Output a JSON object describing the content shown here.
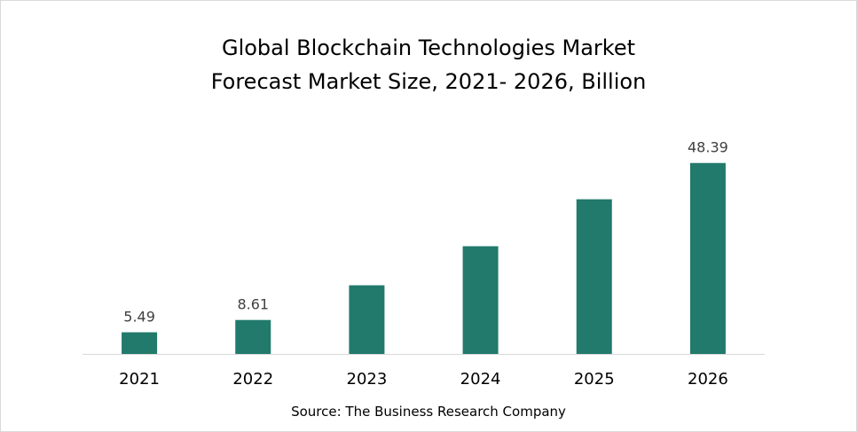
{
  "chart_data": {
    "type": "bar",
    "title": "Global Blockchain Technologies Market",
    "subtitle": "Forecast Market Size, 2021- 2026, Billion",
    "categories": [
      "2021",
      "2022",
      "2023",
      "2024",
      "2025",
      "2026"
    ],
    "values": [
      5.49,
      8.61,
      17.4,
      27.3,
      39.2,
      48.39
    ],
    "data_labels": [
      "5.49",
      "8.61",
      "",
      "",
      "",
      "48.39"
    ],
    "xlabel": "",
    "ylabel": "",
    "ylim": [
      0,
      58
    ],
    "grid": false,
    "legend": "none",
    "bar_color": "#217a6b"
  },
  "source": "Source: The Business Research Company"
}
